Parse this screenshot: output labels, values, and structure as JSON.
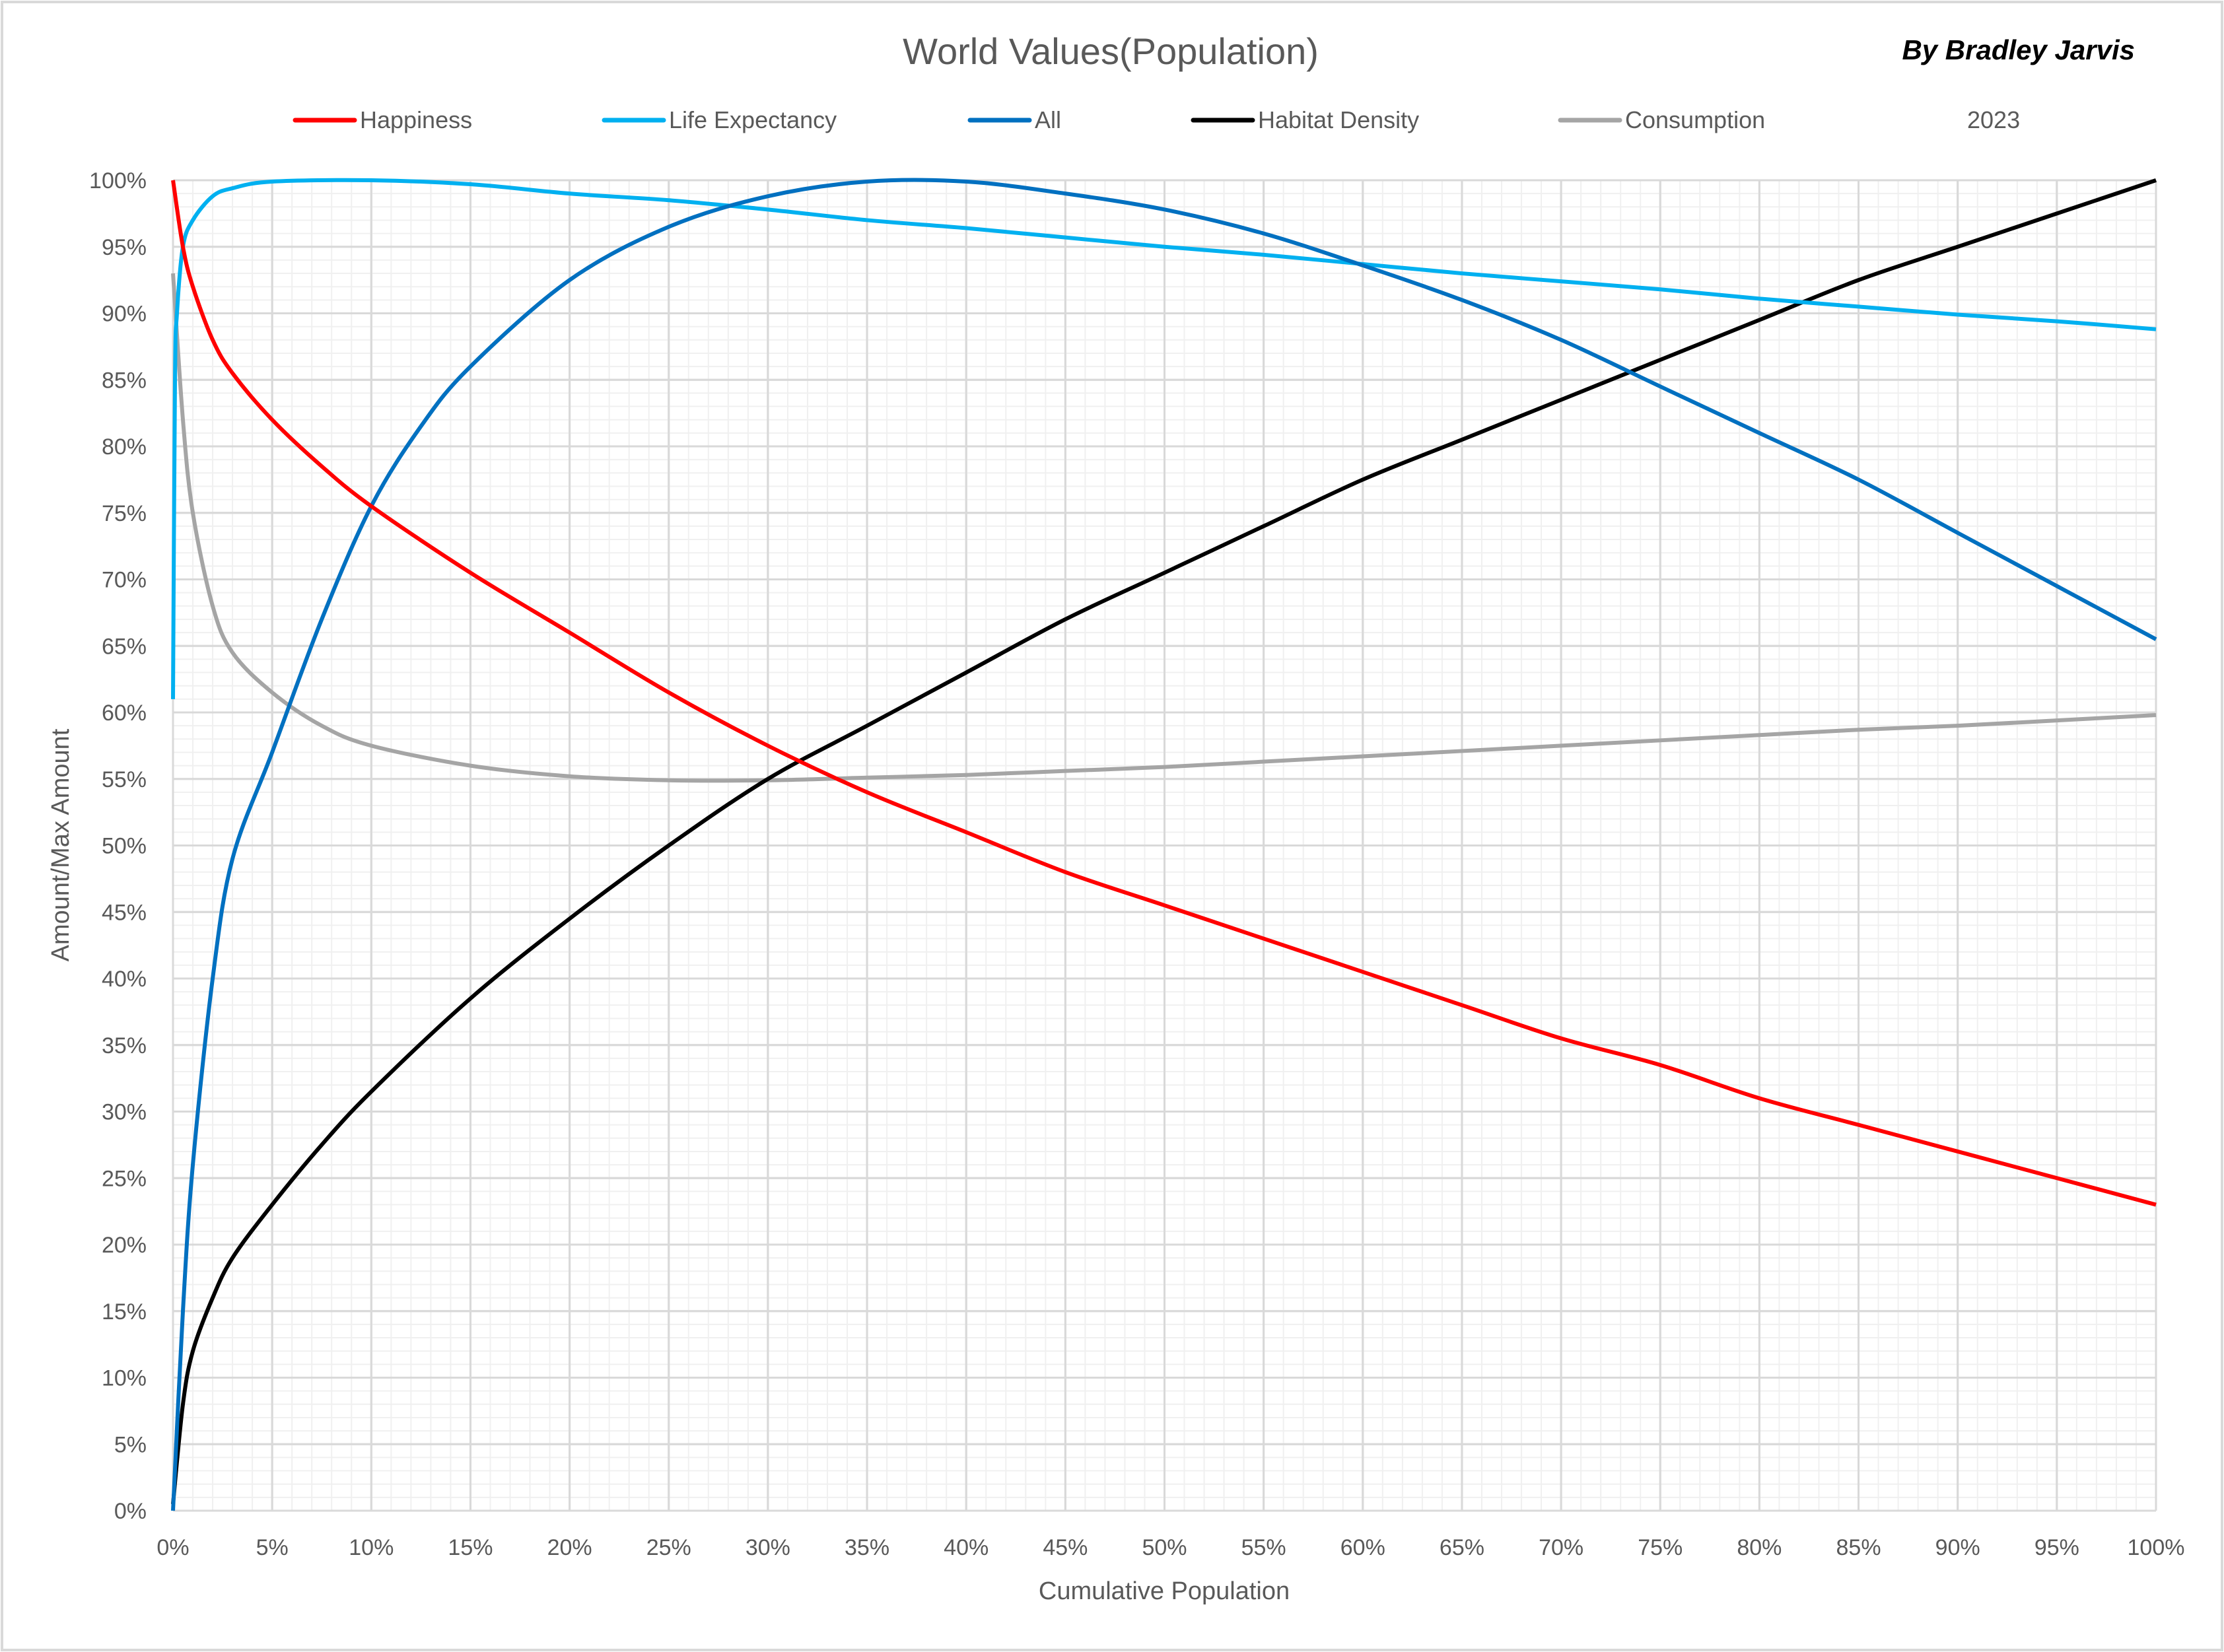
{
  "chart_data": {
    "type": "line",
    "title": "World Values(Population)",
    "byline": "By Bradley Jarvis",
    "xlabel": "Cumulative Population",
    "ylabel": "Amount/Max Amount",
    "xlim": [
      0,
      100
    ],
    "ylim": [
      0,
      100
    ],
    "grid": "major every 5%, minor every 1%",
    "legend_position": "top",
    "legend_extra": "2023",
    "x_ticks": [
      "0%",
      "5%",
      "10%",
      "15%",
      "20%",
      "25%",
      "30%",
      "35%",
      "40%",
      "45%",
      "50%",
      "55%",
      "60%",
      "65%",
      "70%",
      "75%",
      "80%",
      "85%",
      "90%",
      "95%",
      "100%"
    ],
    "y_ticks": [
      "0%",
      "5%",
      "10%",
      "15%",
      "20%",
      "25%",
      "30%",
      "35%",
      "40%",
      "45%",
      "50%",
      "55%",
      "60%",
      "65%",
      "70%",
      "75%",
      "80%",
      "85%",
      "90%",
      "95%",
      "100%"
    ],
    "series": [
      {
        "name": "Happiness",
        "color": "#ff0000",
        "x": [
          0,
          0.5,
          1,
          2,
          3,
          5,
          7.5,
          10,
          15,
          20,
          25,
          30,
          35,
          40,
          45,
          50,
          55,
          60,
          65,
          70,
          75,
          80,
          85,
          90,
          95,
          100
        ],
        "y": [
          100,
          95,
          92,
          88,
          85.5,
          82,
          78.5,
          75.5,
          70.5,
          66,
          61.5,
          57.5,
          54,
          51,
          48,
          45.5,
          43,
          40.5,
          38,
          35.5,
          33.5,
          31,
          29,
          27,
          25,
          23
        ]
      },
      {
        "name": "Life Expectancy",
        "color": "#00b0f0",
        "x": [
          0,
          0.1,
          0.2,
          0.5,
          1,
          2,
          3,
          5,
          10,
          15,
          20,
          25,
          30,
          35,
          40,
          45,
          50,
          55,
          60,
          65,
          70,
          75,
          80,
          85,
          90,
          95,
          100
        ],
        "y": [
          61,
          85,
          90,
          95,
          97,
          98.8,
          99.4,
          99.9,
          100,
          99.7,
          99,
          98.5,
          97.8,
          97,
          96.4,
          95.7,
          95,
          94.4,
          93.7,
          93,
          92.4,
          91.8,
          91.1,
          90.5,
          89.9,
          89.4,
          88.8
        ]
      },
      {
        "name": "All",
        "color": "#0070c0",
        "x": [
          0,
          0.5,
          1,
          2,
          3,
          5,
          7.5,
          10,
          12.5,
          15,
          20,
          25,
          30,
          35,
          40,
          45,
          50,
          55,
          60,
          65,
          70,
          75,
          80,
          85,
          90,
          95,
          100
        ],
        "y": [
          0,
          15,
          26,
          40,
          49,
          57,
          67,
          75.5,
          81.5,
          86,
          92.5,
          96.5,
          98.8,
          99.9,
          99.9,
          99,
          97.8,
          96,
          93.6,
          91,
          88,
          84.5,
          81,
          77.5,
          73.5,
          69.5,
          65.5
        ]
      },
      {
        "name": "Habitat Density",
        "color": "#000000",
        "x": [
          0,
          0.5,
          1,
          2,
          3,
          5,
          7.5,
          10,
          15,
          20,
          25,
          30,
          35,
          40,
          45,
          50,
          55,
          60,
          65,
          70,
          75,
          80,
          85,
          90,
          95,
          100
        ],
        "y": [
          0.5,
          8,
          12,
          16,
          19,
          23,
          27.5,
          31.5,
          38.5,
          44.5,
          50,
          55,
          59,
          63,
          67,
          70.5,
          74,
          77.5,
          80.5,
          83.5,
          86.5,
          89.5,
          92.5,
          95,
          97.5,
          100
        ]
      },
      {
        "name": "Consumption",
        "color": "#a5a5a5",
        "x": [
          0,
          0.5,
          1,
          2,
          3,
          5,
          7.5,
          10,
          15,
          20,
          25,
          30,
          35,
          40,
          45,
          50,
          55,
          60,
          65,
          70,
          75,
          80,
          85,
          90,
          95,
          100
        ],
        "y": [
          93,
          82,
          75,
          68,
          64.5,
          61.5,
          59,
          57.5,
          56,
          55.2,
          54.9,
          54.9,
          55.1,
          55.3,
          55.6,
          55.9,
          56.3,
          56.7,
          57.1,
          57.5,
          57.9,
          58.3,
          58.7,
          59,
          59.4,
          59.8
        ]
      }
    ]
  }
}
